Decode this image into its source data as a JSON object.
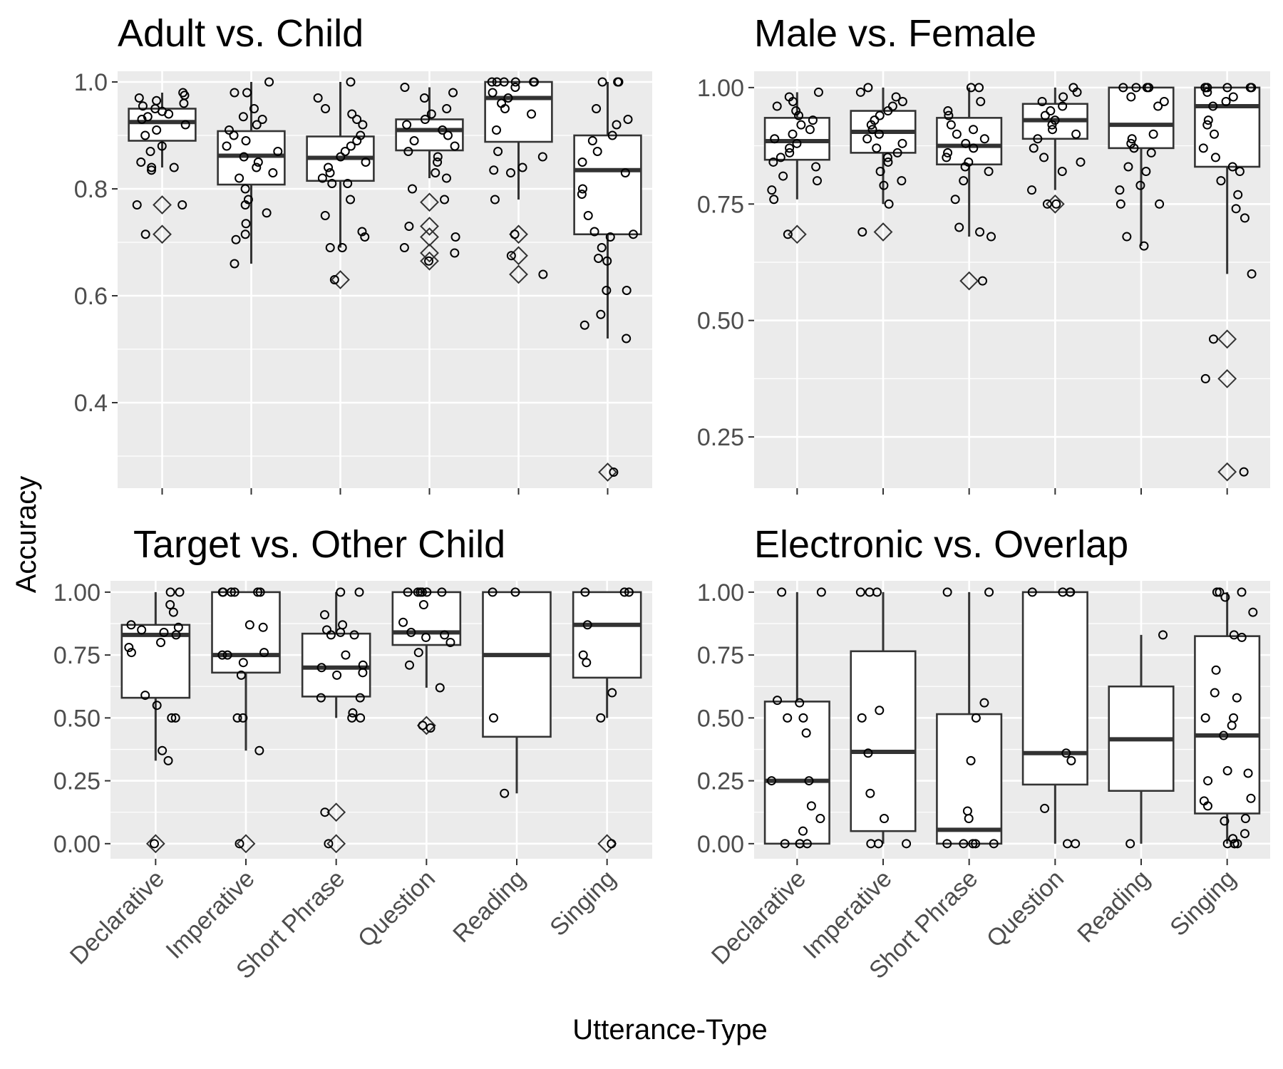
{
  "axis_titles": {
    "x": "Utterance-Type",
    "y": "Accuracy"
  },
  "chart_data": [
    {
      "type": "box",
      "title": "Adult vs. Child",
      "categories": [
        "Declarative",
        "Imperative",
        "Short Phrase",
        "Question",
        "Reading",
        "Singing"
      ],
      "ylim": [
        0.24,
        1.02
      ],
      "yticks": [
        0.4,
        0.6,
        0.8,
        1.0
      ],
      "ytick_labels": [
        "0.4",
        "0.6",
        "0.8",
        "1.0"
      ],
      "boxes": [
        {
          "q1": 0.89,
          "median": 0.925,
          "q3": 0.95,
          "whisker_low": 0.84,
          "whisker_high": 0.98,
          "outliers": [
            0.77,
            0.715
          ]
        },
        {
          "q1": 0.808,
          "median": 0.862,
          "q3": 0.908,
          "whisker_low": 0.66,
          "whisker_high": 1.0,
          "outliers": []
        },
        {
          "q1": 0.815,
          "median": 0.858,
          "q3": 0.898,
          "whisker_low": 0.69,
          "whisker_high": 1.0,
          "outliers": [
            0.63
          ]
        },
        {
          "q1": 0.872,
          "median": 0.91,
          "q3": 0.93,
          "whisker_low": 0.82,
          "whisker_high": 0.99,
          "outliers": [
            0.775,
            0.73,
            0.71,
            0.68,
            0.665
          ]
        },
        {
          "q1": 0.888,
          "median": 0.97,
          "q3": 1.0,
          "whisker_low": 0.78,
          "whisker_high": 1.0,
          "outliers": [
            0.715,
            0.675,
            0.64
          ]
        },
        {
          "q1": 0.715,
          "median": 0.835,
          "q3": 0.9,
          "whisker_low": 0.52,
          "whisker_high": 1.0,
          "outliers": [
            0.27
          ]
        }
      ],
      "points": [
        [
          0.98,
          0.975,
          0.97,
          0.965,
          0.96,
          0.955,
          0.95,
          0.945,
          0.94,
          0.935,
          0.93,
          0.92,
          0.91,
          0.9,
          0.88,
          0.87,
          0.85,
          0.84,
          0.84,
          0.835,
          0.77,
          0.77,
          0.715
        ],
        [
          1.0,
          0.98,
          0.98,
          0.95,
          0.935,
          0.93,
          0.92,
          0.91,
          0.9,
          0.89,
          0.88,
          0.87,
          0.86,
          0.85,
          0.84,
          0.83,
          0.82,
          0.8,
          0.78,
          0.77,
          0.755,
          0.735,
          0.715,
          0.705,
          0.66
        ],
        [
          1.0,
          0.97,
          0.95,
          0.94,
          0.93,
          0.92,
          0.9,
          0.89,
          0.88,
          0.87,
          0.86,
          0.85,
          0.84,
          0.83,
          0.82,
          0.81,
          0.81,
          0.78,
          0.75,
          0.72,
          0.71,
          0.69,
          0.69,
          0.63
        ],
        [
          0.99,
          0.98,
          0.97,
          0.95,
          0.94,
          0.93,
          0.92,
          0.91,
          0.9,
          0.89,
          0.88,
          0.87,
          0.86,
          0.85,
          0.83,
          0.82,
          0.8,
          0.78,
          0.73,
          0.71,
          0.69,
          0.68,
          0.665
        ],
        [
          1.0,
          1.0,
          1.0,
          1.0,
          1.0,
          1.0,
          0.99,
          0.98,
          0.97,
          0.96,
          0.95,
          0.94,
          0.91,
          0.87,
          0.86,
          0.84,
          0.835,
          0.83,
          0.78,
          0.715,
          0.675,
          0.64
        ],
        [
          1.0,
          1.0,
          1.0,
          0.95,
          0.93,
          0.92,
          0.9,
          0.89,
          0.87,
          0.85,
          0.83,
          0.8,
          0.79,
          0.75,
          0.72,
          0.715,
          0.71,
          0.69,
          0.67,
          0.665,
          0.61,
          0.61,
          0.565,
          0.545,
          0.52,
          0.27
        ]
      ]
    },
    {
      "type": "box",
      "title": "Male vs. Female",
      "categories": [
        "Declarative",
        "Imperative",
        "Short Phrase",
        "Question",
        "Reading",
        "Singing"
      ],
      "ylim": [
        0.14,
        1.035
      ],
      "yticks": [
        0.25,
        0.5,
        0.75,
        1.0
      ],
      "ytick_labels": [
        "0.25",
        "0.50",
        "0.75",
        "1.00"
      ],
      "boxes": [
        {
          "q1": 0.845,
          "median": 0.885,
          "q3": 0.935,
          "whisker_low": 0.76,
          "whisker_high": 0.99,
          "outliers": [
            0.685
          ]
        },
        {
          "q1": 0.86,
          "median": 0.905,
          "q3": 0.95,
          "whisker_low": 0.75,
          "whisker_high": 1.0,
          "outliers": [
            0.69
          ]
        },
        {
          "q1": 0.835,
          "median": 0.875,
          "q3": 0.935,
          "whisker_low": 0.68,
          "whisker_high": 1.0,
          "outliers": [
            0.585
          ]
        },
        {
          "q1": 0.89,
          "median": 0.93,
          "q3": 0.965,
          "whisker_low": 0.78,
          "whisker_high": 1.0,
          "outliers": [
            0.75
          ]
        },
        {
          "q1": 0.87,
          "median": 0.92,
          "q3": 1.0,
          "whisker_low": 0.66,
          "whisker_high": 1.0,
          "outliers": []
        },
        {
          "q1": 0.83,
          "median": 0.96,
          "q3": 1.0,
          "whisker_low": 0.6,
          "whisker_high": 1.0,
          "outliers": [
            0.46,
            0.375,
            0.175
          ]
        }
      ],
      "points": [
        [
          0.99,
          0.98,
          0.97,
          0.96,
          0.95,
          0.94,
          0.93,
          0.92,
          0.91,
          0.9,
          0.89,
          0.88,
          0.87,
          0.86,
          0.85,
          0.84,
          0.83,
          0.81,
          0.8,
          0.78,
          0.76,
          0.685
        ],
        [
          1.0,
          0.99,
          0.98,
          0.97,
          0.96,
          0.95,
          0.94,
          0.93,
          0.92,
          0.91,
          0.9,
          0.89,
          0.88,
          0.87,
          0.86,
          0.85,
          0.84,
          0.82,
          0.8,
          0.79,
          0.75,
          0.69
        ],
        [
          1.0,
          1.0,
          0.97,
          0.95,
          0.94,
          0.92,
          0.91,
          0.9,
          0.89,
          0.88,
          0.87,
          0.86,
          0.85,
          0.84,
          0.83,
          0.82,
          0.8,
          0.76,
          0.7,
          0.69,
          0.68,
          0.585
        ],
        [
          1.0,
          0.99,
          0.98,
          0.97,
          0.96,
          0.95,
          0.94,
          0.93,
          0.92,
          0.91,
          0.9,
          0.89,
          0.87,
          0.85,
          0.84,
          0.82,
          0.78,
          0.75,
          0.75
        ],
        [
          1.0,
          1.0,
          1.0,
          1.0,
          0.98,
          0.97,
          0.96,
          0.9,
          0.89,
          0.88,
          0.87,
          0.86,
          0.83,
          0.82,
          0.79,
          0.78,
          0.75,
          0.75,
          0.68,
          0.66
        ],
        [
          1.0,
          1.0,
          1.0,
          1.0,
          1.0,
          1.0,
          0.99,
          0.98,
          0.97,
          0.96,
          0.93,
          0.92,
          0.9,
          0.87,
          0.85,
          0.83,
          0.82,
          0.8,
          0.77,
          0.74,
          0.72,
          0.6,
          0.46,
          0.375,
          0.175
        ]
      ]
    },
    {
      "type": "box",
      "title": "Target vs. Other Child",
      "categories": [
        "Declarative",
        "Imperative",
        "Short Phrase",
        "Question",
        "Reading",
        "Singing"
      ],
      "ylim": [
        -0.06,
        1.045
      ],
      "yticks": [
        0.0,
        0.25,
        0.5,
        0.75,
        1.0
      ],
      "ytick_labels": [
        "0.00",
        "0.25",
        "0.50",
        "0.75",
        "1.00"
      ],
      "boxes": [
        {
          "q1": 0.58,
          "median": 0.83,
          "q3": 0.87,
          "whisker_low": 0.33,
          "whisker_high": 1.0,
          "outliers": [
            0.0
          ]
        },
        {
          "q1": 0.68,
          "median": 0.75,
          "q3": 1.0,
          "whisker_low": 0.37,
          "whisker_high": 1.0,
          "outliers": [
            0.0
          ]
        },
        {
          "q1": 0.585,
          "median": 0.7,
          "q3": 0.835,
          "whisker_low": 0.5,
          "whisker_high": 1.0,
          "outliers": [
            0.125,
            0.0
          ]
        },
        {
          "q1": 0.79,
          "median": 0.84,
          "q3": 1.0,
          "whisker_low": 0.62,
          "whisker_high": 1.0,
          "outliers": [
            0.47
          ]
        },
        {
          "q1": 0.425,
          "median": 0.75,
          "q3": 1.0,
          "whisker_low": 0.2,
          "whisker_high": 1.0,
          "outliers": []
        },
        {
          "q1": 0.66,
          "median": 0.87,
          "q3": 1.0,
          "whisker_low": 0.5,
          "whisker_high": 1.0,
          "outliers": [
            0.0
          ]
        }
      ],
      "points": [
        [
          1.0,
          1.0,
          0.95,
          0.92,
          0.87,
          0.86,
          0.85,
          0.84,
          0.83,
          0.8,
          0.78,
          0.76,
          0.59,
          0.55,
          0.5,
          0.5,
          0.37,
          0.33,
          0.0
        ],
        [
          1.0,
          1.0,
          1.0,
          1.0,
          1.0,
          1.0,
          0.87,
          0.86,
          0.76,
          0.75,
          0.75,
          0.72,
          0.67,
          0.5,
          0.5,
          0.37,
          0.0
        ],
        [
          1.0,
          1.0,
          0.91,
          0.87,
          0.85,
          0.84,
          0.83,
          0.83,
          0.75,
          0.71,
          0.7,
          0.68,
          0.67,
          0.58,
          0.58,
          0.52,
          0.5,
          0.5,
          0.125,
          0.0
        ],
        [
          1.0,
          1.0,
          1.0,
          1.0,
          1.0,
          1.0,
          0.95,
          0.88,
          0.84,
          0.83,
          0.82,
          0.8,
          0.76,
          0.71,
          0.62,
          0.47,
          0.46
        ],
        [
          1.0,
          1.0,
          0.5,
          0.2
        ],
        [
          1.0,
          1.0,
          1.0,
          0.87,
          0.75,
          0.72,
          0.6,
          0.5,
          0.0
        ]
      ]
    },
    {
      "type": "box",
      "title": "Electronic vs. Overlap",
      "categories": [
        "Declarative",
        "Imperative",
        "Short Phrase",
        "Question",
        "Reading",
        "Singing"
      ],
      "ylim": [
        -0.06,
        1.045
      ],
      "yticks": [
        0.0,
        0.25,
        0.5,
        0.75,
        1.0
      ],
      "ytick_labels": [
        "0.00",
        "0.25",
        "0.50",
        "0.75",
        "1.00"
      ],
      "boxes": [
        {
          "q1": 0.0,
          "median": 0.25,
          "q3": 0.565,
          "whisker_low": 0.0,
          "whisker_high": 1.0,
          "outliers": []
        },
        {
          "q1": 0.05,
          "median": 0.365,
          "q3": 0.765,
          "whisker_low": 0.0,
          "whisker_high": 1.0,
          "outliers": []
        },
        {
          "q1": 0.0,
          "median": 0.055,
          "q3": 0.515,
          "whisker_low": 0.0,
          "whisker_high": 1.0,
          "outliers": []
        },
        {
          "q1": 0.235,
          "median": 0.36,
          "q3": 1.0,
          "whisker_low": 0.0,
          "whisker_high": 1.0,
          "outliers": []
        },
        {
          "q1": 0.21,
          "median": 0.415,
          "q3": 0.625,
          "whisker_low": 0.0,
          "whisker_high": 0.83,
          "outliers": []
        },
        {
          "q1": 0.12,
          "median": 0.43,
          "q3": 0.825,
          "whisker_low": 0.0,
          "whisker_high": 1.0,
          "outliers": []
        }
      ],
      "points": [
        [
          1.0,
          1.0,
          0.57,
          0.56,
          0.5,
          0.5,
          0.44,
          0.25,
          0.25,
          0.15,
          0.1,
          0.05,
          0.0,
          0.0,
          0.0,
          0.0
        ],
        [
          1.0,
          1.0,
          1.0,
          0.53,
          0.5,
          0.36,
          0.2,
          0.1,
          0.0,
          0.0,
          0.0
        ],
        [
          1.0,
          1.0,
          0.56,
          0.5,
          0.33,
          0.13,
          0.1,
          0.0,
          0.0,
          0.0,
          0.0,
          0.0
        ],
        [
          1.0,
          1.0,
          1.0,
          1.0,
          0.36,
          0.33,
          0.14,
          0.0,
          0.0
        ],
        [
          0.83,
          0.0
        ],
        [
          1.0,
          1.0,
          1.0,
          0.98,
          0.92,
          0.83,
          0.82,
          0.69,
          0.6,
          0.58,
          0.5,
          0.5,
          0.47,
          0.43,
          0.29,
          0.28,
          0.25,
          0.18,
          0.17,
          0.15,
          0.1,
          0.09,
          0.04,
          0.02,
          0.0,
          0.0,
          0.0,
          0.0
        ]
      ]
    }
  ]
}
